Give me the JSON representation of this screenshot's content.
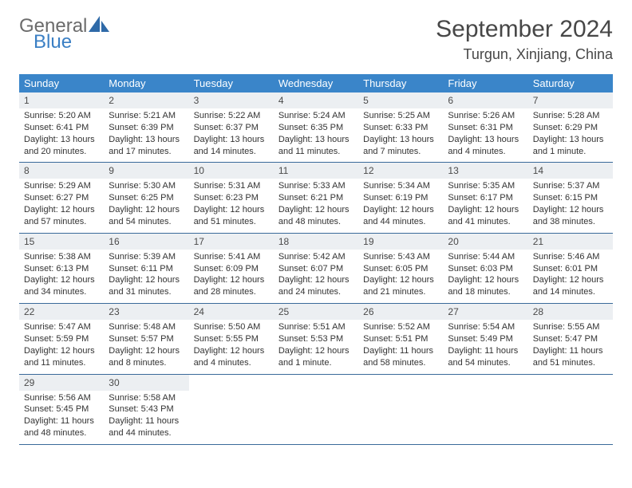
{
  "logo": {
    "general": "General",
    "blue": "Blue"
  },
  "title": "September 2024",
  "location": "Turgun, Xinjiang, China",
  "colors": {
    "header_bg": "#3a85c9",
    "daynum_bg": "#eceff2",
    "week_border": "#3a6a9a",
    "logo_gray": "#6b6b6b",
    "logo_blue": "#3a7fc4"
  },
  "weekdays": [
    "Sunday",
    "Monday",
    "Tuesday",
    "Wednesday",
    "Thursday",
    "Friday",
    "Saturday"
  ],
  "weeks": [
    [
      {
        "n": "1",
        "sunrise": "Sunrise: 5:20 AM",
        "sunset": "Sunset: 6:41 PM",
        "day": "Daylight: 13 hours and 20 minutes."
      },
      {
        "n": "2",
        "sunrise": "Sunrise: 5:21 AM",
        "sunset": "Sunset: 6:39 PM",
        "day": "Daylight: 13 hours and 17 minutes."
      },
      {
        "n": "3",
        "sunrise": "Sunrise: 5:22 AM",
        "sunset": "Sunset: 6:37 PM",
        "day": "Daylight: 13 hours and 14 minutes."
      },
      {
        "n": "4",
        "sunrise": "Sunrise: 5:24 AM",
        "sunset": "Sunset: 6:35 PM",
        "day": "Daylight: 13 hours and 11 minutes."
      },
      {
        "n": "5",
        "sunrise": "Sunrise: 5:25 AM",
        "sunset": "Sunset: 6:33 PM",
        "day": "Daylight: 13 hours and 7 minutes."
      },
      {
        "n": "6",
        "sunrise": "Sunrise: 5:26 AM",
        "sunset": "Sunset: 6:31 PM",
        "day": "Daylight: 13 hours and 4 minutes."
      },
      {
        "n": "7",
        "sunrise": "Sunrise: 5:28 AM",
        "sunset": "Sunset: 6:29 PM",
        "day": "Daylight: 13 hours and 1 minute."
      }
    ],
    [
      {
        "n": "8",
        "sunrise": "Sunrise: 5:29 AM",
        "sunset": "Sunset: 6:27 PM",
        "day": "Daylight: 12 hours and 57 minutes."
      },
      {
        "n": "9",
        "sunrise": "Sunrise: 5:30 AM",
        "sunset": "Sunset: 6:25 PM",
        "day": "Daylight: 12 hours and 54 minutes."
      },
      {
        "n": "10",
        "sunrise": "Sunrise: 5:31 AM",
        "sunset": "Sunset: 6:23 PM",
        "day": "Daylight: 12 hours and 51 minutes."
      },
      {
        "n": "11",
        "sunrise": "Sunrise: 5:33 AM",
        "sunset": "Sunset: 6:21 PM",
        "day": "Daylight: 12 hours and 48 minutes."
      },
      {
        "n": "12",
        "sunrise": "Sunrise: 5:34 AM",
        "sunset": "Sunset: 6:19 PM",
        "day": "Daylight: 12 hours and 44 minutes."
      },
      {
        "n": "13",
        "sunrise": "Sunrise: 5:35 AM",
        "sunset": "Sunset: 6:17 PM",
        "day": "Daylight: 12 hours and 41 minutes."
      },
      {
        "n": "14",
        "sunrise": "Sunrise: 5:37 AM",
        "sunset": "Sunset: 6:15 PM",
        "day": "Daylight: 12 hours and 38 minutes."
      }
    ],
    [
      {
        "n": "15",
        "sunrise": "Sunrise: 5:38 AM",
        "sunset": "Sunset: 6:13 PM",
        "day": "Daylight: 12 hours and 34 minutes."
      },
      {
        "n": "16",
        "sunrise": "Sunrise: 5:39 AM",
        "sunset": "Sunset: 6:11 PM",
        "day": "Daylight: 12 hours and 31 minutes."
      },
      {
        "n": "17",
        "sunrise": "Sunrise: 5:41 AM",
        "sunset": "Sunset: 6:09 PM",
        "day": "Daylight: 12 hours and 28 minutes."
      },
      {
        "n": "18",
        "sunrise": "Sunrise: 5:42 AM",
        "sunset": "Sunset: 6:07 PM",
        "day": "Daylight: 12 hours and 24 minutes."
      },
      {
        "n": "19",
        "sunrise": "Sunrise: 5:43 AM",
        "sunset": "Sunset: 6:05 PM",
        "day": "Daylight: 12 hours and 21 minutes."
      },
      {
        "n": "20",
        "sunrise": "Sunrise: 5:44 AM",
        "sunset": "Sunset: 6:03 PM",
        "day": "Daylight: 12 hours and 18 minutes."
      },
      {
        "n": "21",
        "sunrise": "Sunrise: 5:46 AM",
        "sunset": "Sunset: 6:01 PM",
        "day": "Daylight: 12 hours and 14 minutes."
      }
    ],
    [
      {
        "n": "22",
        "sunrise": "Sunrise: 5:47 AM",
        "sunset": "Sunset: 5:59 PM",
        "day": "Daylight: 12 hours and 11 minutes."
      },
      {
        "n": "23",
        "sunrise": "Sunrise: 5:48 AM",
        "sunset": "Sunset: 5:57 PM",
        "day": "Daylight: 12 hours and 8 minutes."
      },
      {
        "n": "24",
        "sunrise": "Sunrise: 5:50 AM",
        "sunset": "Sunset: 5:55 PM",
        "day": "Daylight: 12 hours and 4 minutes."
      },
      {
        "n": "25",
        "sunrise": "Sunrise: 5:51 AM",
        "sunset": "Sunset: 5:53 PM",
        "day": "Daylight: 12 hours and 1 minute."
      },
      {
        "n": "26",
        "sunrise": "Sunrise: 5:52 AM",
        "sunset": "Sunset: 5:51 PM",
        "day": "Daylight: 11 hours and 58 minutes."
      },
      {
        "n": "27",
        "sunrise": "Sunrise: 5:54 AM",
        "sunset": "Sunset: 5:49 PM",
        "day": "Daylight: 11 hours and 54 minutes."
      },
      {
        "n": "28",
        "sunrise": "Sunrise: 5:55 AM",
        "sunset": "Sunset: 5:47 PM",
        "day": "Daylight: 11 hours and 51 minutes."
      }
    ],
    [
      {
        "n": "29",
        "sunrise": "Sunrise: 5:56 AM",
        "sunset": "Sunset: 5:45 PM",
        "day": "Daylight: 11 hours and 48 minutes."
      },
      {
        "n": "30",
        "sunrise": "Sunrise: 5:58 AM",
        "sunset": "Sunset: 5:43 PM",
        "day": "Daylight: 11 hours and 44 minutes."
      },
      {
        "empty": true
      },
      {
        "empty": true
      },
      {
        "empty": true
      },
      {
        "empty": true
      },
      {
        "empty": true
      }
    ]
  ]
}
